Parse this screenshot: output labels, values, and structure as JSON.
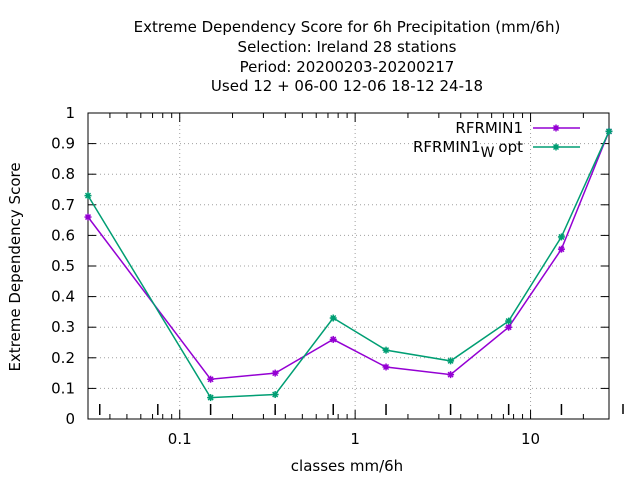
{
  "chart_data": {
    "type": "line",
    "title_lines": [
      "Extreme Dependency Score  for 6h Precipitation (mm/6h)",
      "Selection: Ireland     28 stations",
      "Period: 20200203-20200217",
      "Used  12 + 06-00 12-06 18-12 24-18"
    ],
    "xlabel": "classes mm/6h",
    "ylabel": "Extreme Dependency Score",
    "xscale": "log",
    "xlim": [
      0.03,
      28
    ],
    "ylim": [
      0,
      1
    ],
    "xticks": [
      {
        "value": 0.1,
        "label": "0.1"
      },
      {
        "value": 1,
        "label": "1"
      },
      {
        "value": 10,
        "label": "10"
      }
    ],
    "yticks": [
      {
        "value": 0,
        "label": "0"
      },
      {
        "value": 0.1,
        "label": "0.1"
      },
      {
        "value": 0.2,
        "label": "0.2"
      },
      {
        "value": 0.3,
        "label": "0.3"
      },
      {
        "value": 0.4,
        "label": "0.4"
      },
      {
        "value": 0.5,
        "label": "0.5"
      },
      {
        "value": 0.6,
        "label": "0.6"
      },
      {
        "value": 0.7,
        "label": "0.7"
      },
      {
        "value": 0.8,
        "label": "0.8"
      },
      {
        "value": 0.9,
        "label": "0.9"
      },
      {
        "value": 1,
        "label": "1"
      }
    ],
    "grid": true,
    "legend_position": "top-right",
    "series": [
      {
        "name": "RFRMIN1",
        "color": "#9400d3",
        "marker": "star",
        "x": [
          0.03,
          0.15,
          0.35,
          0.75,
          1.5,
          3.5,
          7.5,
          15,
          28
        ],
        "y": [
          0.66,
          0.13,
          0.15,
          0.26,
          0.17,
          0.145,
          0.3,
          0.555,
          0.94
        ]
      },
      {
        "name": "RFRMIN1",
        "name_subscript": "W",
        "name_suffix": "opt",
        "color": "#009e73",
        "marker": "star",
        "x": [
          0.03,
          0.15,
          0.35,
          0.75,
          1.5,
          3.5,
          7.5,
          15,
          28
        ],
        "y": [
          0.73,
          0.07,
          0.08,
          0.33,
          0.225,
          0.19,
          0.32,
          0.595,
          0.94
        ]
      }
    ]
  }
}
